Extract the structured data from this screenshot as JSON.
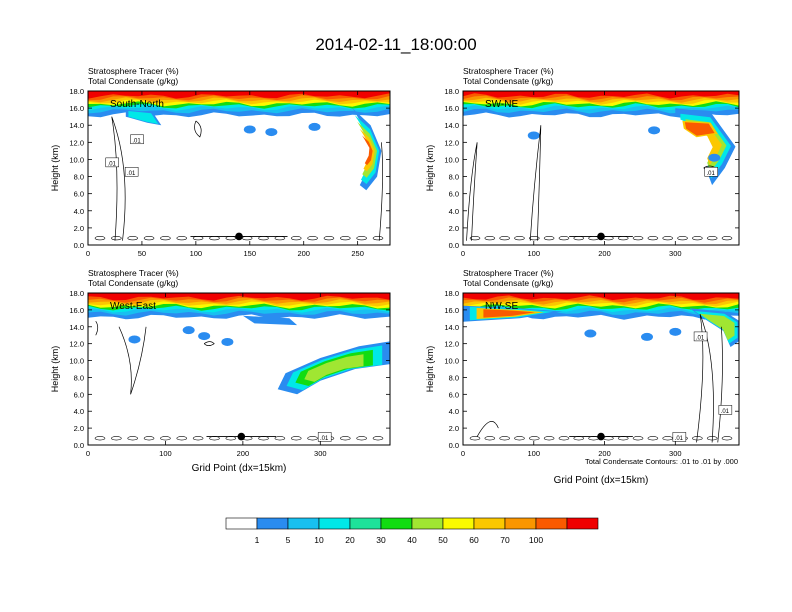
{
  "title": "2014-02-11_18:00:00",
  "footnote": "Total Condensate Contours: .01 to .01 by .000",
  "colors": {
    "levels": [
      "#ffffff",
      "#2a8cf0",
      "#18c0f0",
      "#00e8e8",
      "#1ee29a",
      "#12dc12",
      "#a0e632",
      "#fafa00",
      "#fbc800",
      "#fa9600",
      "#fa5a00",
      "#f00000"
    ],
    "contour": "#000000"
  },
  "colorbar": {
    "labels": [
      "1",
      "5",
      "10",
      "20",
      "30",
      "40",
      "50",
      "60",
      "70",
      "100"
    ]
  },
  "panels": [
    {
      "name": "South-North",
      "line1": "Stratosphere Tracer   (%)",
      "line2": "Total Condensate   (g/kg)",
      "label": "South-North",
      "xlabel": "",
      "ylabel": "Height (km)",
      "xticks": [
        "0",
        "50",
        "100",
        "150",
        "200",
        "250"
      ],
      "yticks": [
        "0.0",
        "2.0",
        "4.0",
        "6.0",
        "8.0",
        "10.0",
        "12.0",
        "14.0",
        "16.0",
        "18.0"
      ],
      "contour_labels": [
        ".01",
        ".01",
        ".01"
      ]
    },
    {
      "name": "SW-NE",
      "line1": "Stratosphere Tracer   (%)",
      "line2": "Total Condensate   (g/kg)",
      "label": "SW-NE",
      "xlabel": "",
      "ylabel": "Height (km)",
      "xticks": [
        "0",
        "100",
        "200",
        "300"
      ],
      "yticks": [
        "0.0",
        "2.0",
        "4.0",
        "6.0",
        "8.0",
        "10.0",
        "12.0",
        "14.0",
        "16.0",
        "18.0"
      ],
      "contour_labels": [
        ".01"
      ]
    },
    {
      "name": "West-East",
      "line1": "Stratosphere Tracer   (%)",
      "line2": "Total Condensate   (g/kg)",
      "label": "West-East",
      "xlabel": "Grid Point (dx=15km)",
      "ylabel": "Height (km)",
      "xticks": [
        "0",
        "100",
        "200",
        "300"
      ],
      "yticks": [
        "0.0",
        "2.0",
        "4.0",
        "6.0",
        "8.0",
        "10.0",
        "12.0",
        "14.0",
        "16.0",
        "18.0"
      ],
      "contour_labels": [
        ".01"
      ]
    },
    {
      "name": "NW-SE",
      "line1": "Stratosphere Tracer   (%)",
      "line2": "Total Condensate   (g/kg)",
      "label": "NW-SE",
      "xlabel": "Grid Point (dx=15km)",
      "ylabel": "Height (km)",
      "xticks": [
        "0",
        "100",
        "200",
        "300"
      ],
      "yticks": [
        "0.0",
        "2.0",
        "4.0",
        "6.0",
        "8.0",
        "10.0",
        "12.0",
        "14.0",
        "16.0",
        "18.0"
      ],
      "contour_labels": [
        ".01",
        ".01",
        ".01"
      ]
    }
  ],
  "chart_data": [
    {
      "type": "heatmap",
      "title": "Stratosphere Tracer (%) / Total Condensate (g/kg)",
      "panel": "South-North",
      "x_range": [
        0,
        280
      ],
      "y_range": [
        0,
        18
      ],
      "xticks": [
        0,
        50,
        100,
        150,
        200,
        250
      ],
      "yticks": [
        0,
        2,
        4,
        6,
        8,
        10,
        12,
        14,
        16,
        18
      ],
      "colorbar_levels": [
        1,
        5,
        10,
        20,
        30,
        40,
        50,
        60,
        70,
        100
      ],
      "marker": {
        "x": 140,
        "y": 1.0
      },
      "description_values": {
        "tracer_top_percent": 100,
        "tracer_tongue_min_height_km": 6.5
      }
    },
    {
      "type": "heatmap",
      "title": "Stratosphere Tracer (%) / Total Condensate (g/kg)",
      "panel": "SW-NE",
      "x_range": [
        0,
        390
      ],
      "y_range": [
        0,
        18
      ],
      "xticks": [
        0,
        100,
        200,
        300
      ],
      "yticks": [
        0,
        2,
        4,
        6,
        8,
        10,
        12,
        14,
        16,
        18
      ],
      "colorbar_levels": [
        1,
        5,
        10,
        20,
        30,
        40,
        50,
        60,
        70,
        100
      ],
      "marker": {
        "x": 195,
        "y": 1.0
      },
      "description_values": {
        "tracer_top_percent": 100,
        "tracer_tongue_min_height_km": 7.0
      }
    },
    {
      "type": "heatmap",
      "title": "Stratosphere Tracer (%) / Total Condensate (g/kg)",
      "panel": "West-East",
      "x_range": [
        0,
        390
      ],
      "y_range": [
        0,
        18
      ],
      "xticks": [
        0,
        100,
        200,
        300
      ],
      "yticks": [
        0,
        2,
        4,
        6,
        8,
        10,
        12,
        14,
        16,
        18
      ],
      "colorbar_levels": [
        1,
        5,
        10,
        20,
        30,
        40,
        50,
        60,
        70,
        100
      ],
      "marker": {
        "x": 198,
        "y": 1.0
      },
      "description_values": {
        "tracer_top_percent": 100,
        "tracer_tongue_min_height_km": 6.0
      }
    },
    {
      "type": "heatmap",
      "title": "Stratosphere Tracer (%) / Total Condensate (g/kg)",
      "panel": "NW-SE",
      "x_range": [
        0,
        390
      ],
      "y_range": [
        0,
        18
      ],
      "xticks": [
        0,
        100,
        200,
        300
      ],
      "yticks": [
        0,
        2,
        4,
        6,
        8,
        10,
        12,
        14,
        16,
        18
      ],
      "colorbar_levels": [
        1,
        5,
        10,
        20,
        30,
        40,
        50,
        60,
        70,
        100
      ],
      "marker": {
        "x": 195,
        "y": 1.0
      },
      "description_values": {
        "tracer_top_percent": 100,
        "tracer_tongue_min_height_km": 11.5
      }
    }
  ]
}
